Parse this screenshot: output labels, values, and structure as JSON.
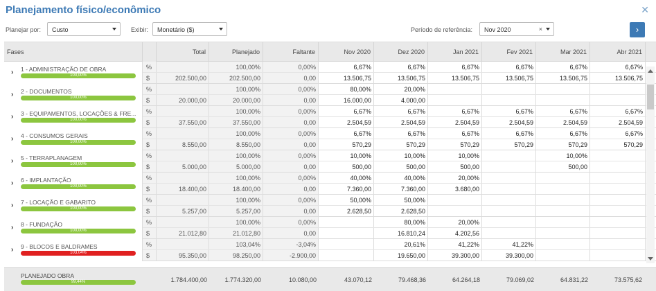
{
  "title": "Planejamento físico/econômico",
  "filters": {
    "planejar_label": "Planejar por:",
    "planejar_value": "Custo",
    "exibir_label": "Exibir:",
    "exibir_value": "Monetário ($)",
    "periodo_label": "Período de referência:",
    "periodo_value": "Nov 2020",
    "clear_symbol": "×",
    "go_symbol": "›",
    "close_symbol": "✕"
  },
  "columns": {
    "fases": "Fases",
    "total": "Total",
    "planejado": "Planejado",
    "faltante": "Faltante",
    "months": [
      "Nov 2020",
      "Dez 2020",
      "Jan 2021",
      "Fev 2021",
      "Mar 2021",
      "Abr 2021"
    ]
  },
  "units": {
    "pct": "%",
    "money": "$"
  },
  "phases": [
    {
      "label": "1 - ADMINISTRAÇÃO DE OBRA",
      "progress": "100,00%",
      "progress_value": 100,
      "color": "#8cc63f",
      "pct": {
        "planejado": "100,00%",
        "faltante": "0,00%",
        "months": [
          "6,67%",
          "6,67%",
          "6,67%",
          "6,67%",
          "6,67%",
          "6,67%"
        ]
      },
      "money": {
        "total": "202.500,00",
        "planejado": "202.500,00",
        "faltante": "0,00",
        "months": [
          "13.506,75",
          "13.506,75",
          "13.506,75",
          "13.506,75",
          "13.506,75",
          "13.506,75"
        ]
      }
    },
    {
      "label": "2 - DOCUMENTOS",
      "progress": "100,00%",
      "progress_value": 100,
      "color": "#8cc63f",
      "pct": {
        "planejado": "100,00%",
        "faltante": "0,00%",
        "months": [
          "80,00%",
          "20,00%",
          "",
          "",
          "",
          ""
        ]
      },
      "money": {
        "total": "20.000,00",
        "planejado": "20.000,00",
        "faltante": "0,00",
        "months": [
          "16.000,00",
          "4.000,00",
          "",
          "",
          "",
          ""
        ]
      }
    },
    {
      "label": "3 - EQUIPAMENTOS, LOCAÇÕES & FRE...",
      "progress": "100,00%",
      "progress_value": 100,
      "color": "#8cc63f",
      "pct": {
        "planejado": "100,00%",
        "faltante": "0,00%",
        "months": [
          "6,67%",
          "6,67%",
          "6,67%",
          "6,67%",
          "6,67%",
          "6,67%"
        ]
      },
      "money": {
        "total": "37.550,00",
        "planejado": "37.550,00",
        "faltante": "0,00",
        "months": [
          "2.504,59",
          "2.504,59",
          "2.504,59",
          "2.504,59",
          "2.504,59",
          "2.504,59"
        ]
      }
    },
    {
      "label": "4 - CONSUMOS GERAIS",
      "progress": "100,00%",
      "progress_value": 100,
      "color": "#8cc63f",
      "pct": {
        "planejado": "100,00%",
        "faltante": "0,00%",
        "months": [
          "6,67%",
          "6,67%",
          "6,67%",
          "6,67%",
          "6,67%",
          "6,67%"
        ]
      },
      "money": {
        "total": "8.550,00",
        "planejado": "8.550,00",
        "faltante": "0,00",
        "months": [
          "570,29",
          "570,29",
          "570,29",
          "570,29",
          "570,29",
          "570,29"
        ]
      }
    },
    {
      "label": "5 - TERRAPLANAGEM",
      "progress": "100,00%",
      "progress_value": 100,
      "color": "#8cc63f",
      "pct": {
        "planejado": "100,00%",
        "faltante": "0,00%",
        "months": [
          "10,00%",
          "10,00%",
          "10,00%",
          "",
          "10,00%",
          ""
        ]
      },
      "money": {
        "total": "5.000,00",
        "planejado": "5.000,00",
        "faltante": "0,00",
        "months": [
          "500,00",
          "500,00",
          "500,00",
          "",
          "500,00",
          ""
        ]
      }
    },
    {
      "label": "6 - IMPLANTAÇÃO",
      "progress": "100,00%",
      "progress_value": 100,
      "color": "#8cc63f",
      "pct": {
        "planejado": "100,00%",
        "faltante": "0,00%",
        "months": [
          "40,00%",
          "40,00%",
          "20,00%",
          "",
          "",
          ""
        ]
      },
      "money": {
        "total": "18.400,00",
        "planejado": "18.400,00",
        "faltante": "0,00",
        "months": [
          "7.360,00",
          "7.360,00",
          "3.680,00",
          "",
          "",
          ""
        ]
      }
    },
    {
      "label": "7 - LOCAÇÃO E GABARITO",
      "progress": "100,00%",
      "progress_value": 100,
      "color": "#8cc63f",
      "pct": {
        "planejado": "100,00%",
        "faltante": "0,00%",
        "months": [
          "50,00%",
          "50,00%",
          "",
          "",
          "",
          ""
        ]
      },
      "money": {
        "total": "5.257,00",
        "planejado": "5.257,00",
        "faltante": "0,00",
        "months": [
          "2.628,50",
          "2.628,50",
          "",
          "",
          "",
          ""
        ]
      }
    },
    {
      "label": "8 - FUNDAÇÃO",
      "progress": "100,00%",
      "progress_value": 100,
      "color": "#8cc63f",
      "pct": {
        "planejado": "100,00%",
        "faltante": "0,00%",
        "months": [
          "",
          "80,00%",
          "20,00%",
          "",
          "",
          ""
        ]
      },
      "money": {
        "total": "21.012,80",
        "planejado": "21.012,80",
        "faltante": "0,00",
        "months": [
          "",
          "16.810,24",
          "4.202,56",
          "",
          "",
          ""
        ]
      }
    },
    {
      "label": "9 - BLOCOS E BALDRAMES",
      "progress": "103,04%",
      "progress_value": 103.04,
      "color": "#e02020",
      "pct": {
        "planejado": "103,04%",
        "faltante": "-3,04%",
        "months": [
          "",
          "20,61%",
          "41,22%",
          "41,22%",
          "",
          ""
        ]
      },
      "money": {
        "total": "95.350,00",
        "planejado": "98.250,00",
        "faltante": "-2.900,00",
        "months": [
          "",
          "19.650,00",
          "39.300,00",
          "39.300,00",
          "",
          ""
        ]
      }
    }
  ],
  "footer": {
    "label": "PLANEJADO OBRA",
    "progress": "99,44%",
    "progress_value": 99.44,
    "total": "1.784.400,00",
    "planejado": "1.774.320,00",
    "faltante": "10.080,00",
    "months": [
      "43.070,12",
      "79.468,36",
      "64.264,18",
      "79.069,02",
      "64.831,22",
      "73.575,62"
    ]
  }
}
